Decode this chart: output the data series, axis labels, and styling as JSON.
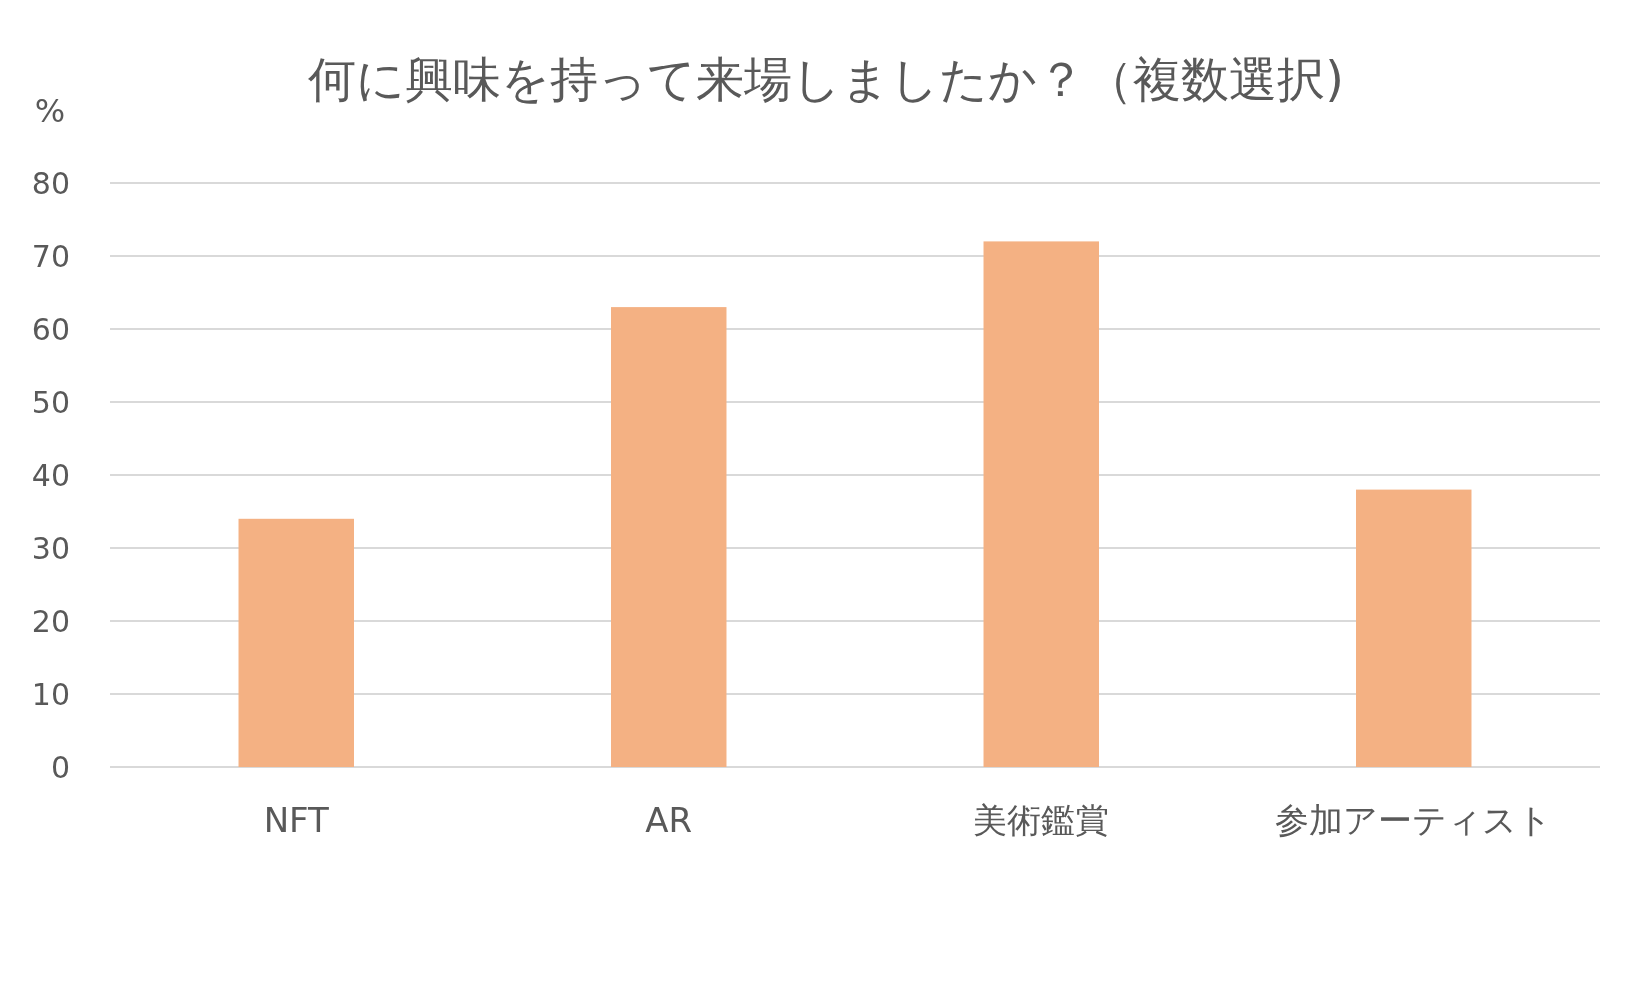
{
  "chart_data": {
    "type": "bar",
    "title": "何に興味を持って来場しましたか？（複数選択)",
    "ylabel": "%",
    "categories": [
      "NFT",
      "AR",
      "美術鑑賞",
      "参加アーティスト"
    ],
    "values": [
      34,
      63,
      72,
      38
    ],
    "color": "#f4b183",
    "ylim": [
      0,
      80
    ],
    "yticks": [
      0,
      10,
      20,
      30,
      40,
      50,
      60,
      70,
      80
    ],
    "grid": "y"
  }
}
